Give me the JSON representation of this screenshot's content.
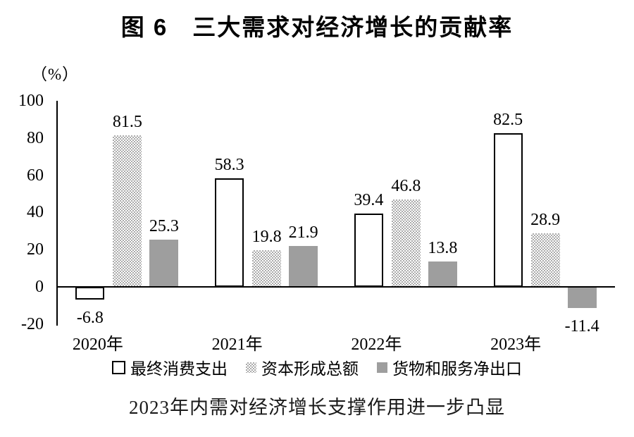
{
  "chart_data": {
    "type": "bar",
    "title": "图 6　三大需求对经济增长的贡献率",
    "unit_label": "（%）",
    "categories": [
      "2020年",
      "2021年",
      "2022年",
      "2023年"
    ],
    "series": [
      {
        "name": "最终消费支出",
        "style": "outline",
        "values": [
          -6.8,
          58.3,
          39.4,
          82.5
        ]
      },
      {
        "name": "资本形成总额",
        "style": "dots",
        "values": [
          81.5,
          19.8,
          46.8,
          28.9
        ]
      },
      {
        "name": "货物和服务净出口",
        "style": "solid",
        "values": [
          25.3,
          21.9,
          13.8,
          -11.4
        ]
      }
    ],
    "ylim": [
      -20,
      100
    ],
    "yticks": [
      100,
      80,
      60,
      40,
      20,
      0,
      -20
    ],
    "grid": false,
    "value_labels": true,
    "legend_position": "bottom",
    "caption": "2023年内需对经济增长支撑作用进一步凸显"
  },
  "colors": {
    "axis": "#000000",
    "text": "#111111",
    "solid_bar": "#9e9e9e",
    "dot_pattern": "#ababab",
    "outline_bar_border": "#000000",
    "background": "#ffffff"
  }
}
